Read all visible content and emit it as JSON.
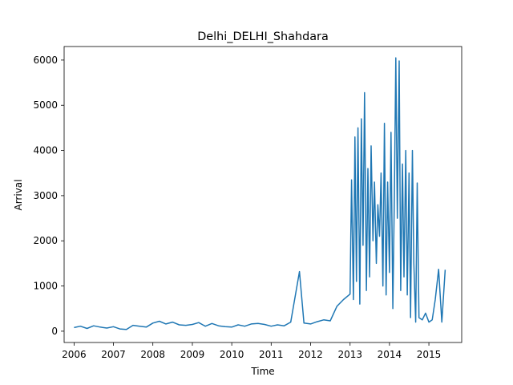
{
  "chart_data": {
    "type": "line",
    "title": "Delhi_DELHI_Shahdara",
    "xlabel": "Time",
    "ylabel": "Arrival",
    "xlim": [
      "2005-10-01",
      "2015-11-01"
    ],
    "ylim": [
      -250,
      6300
    ],
    "x_ticks": [
      "2006",
      "2007",
      "2008",
      "2009",
      "2010",
      "2011",
      "2012",
      "2013",
      "2014",
      "2015"
    ],
    "y_ticks": [
      0,
      1000,
      2000,
      3000,
      4000,
      5000,
      6000
    ],
    "color": "#1f77b4",
    "grid": false,
    "legend": "none",
    "series": [
      {
        "x": [
          "2006-01-01",
          "2006-03-01",
          "2006-05-01",
          "2006-07-01",
          "2006-09-01",
          "2006-11-01",
          "2007-01-01",
          "2007-03-01",
          "2007-05-01",
          "2007-07-01",
          "2007-09-01",
          "2007-11-01",
          "2008-01-01",
          "2008-03-01",
          "2008-05-01",
          "2008-07-01",
          "2008-09-01",
          "2008-11-01",
          "2009-01-01",
          "2009-03-01",
          "2009-05-01",
          "2009-07-01",
          "2009-09-01",
          "2009-11-01",
          "2010-01-01",
          "2010-03-01",
          "2010-05-01",
          "2010-07-01",
          "2010-09-01",
          "2010-11-01",
          "2011-01-01",
          "2011-03-01",
          "2011-05-01",
          "2011-07-01",
          "2011-09-20",
          "2011-11-01",
          "2012-01-01",
          "2012-03-01",
          "2012-05-01",
          "2012-07-01",
          "2012-09-01",
          "2012-11-01",
          "2013-01-01",
          "2013-01-15",
          "2013-02-01",
          "2013-02-15",
          "2013-03-01",
          "2013-03-15",
          "2013-04-01",
          "2013-04-15",
          "2013-05-01",
          "2013-05-15",
          "2013-06-01",
          "2013-06-15",
          "2013-07-01",
          "2013-07-15",
          "2013-08-01",
          "2013-08-15",
          "2013-09-01",
          "2013-09-15",
          "2013-10-01",
          "2013-10-15",
          "2013-11-01",
          "2013-11-15",
          "2013-12-01",
          "2013-12-15",
          "2014-01-01",
          "2014-01-15",
          "2014-02-01",
          "2014-02-15",
          "2014-03-01",
          "2014-03-15",
          "2014-04-01",
          "2014-04-15",
          "2014-05-01",
          "2014-05-15",
          "2014-06-01",
          "2014-06-15",
          "2014-07-01",
          "2014-07-15",
          "2014-08-01",
          "2014-08-15",
          "2014-09-01",
          "2014-09-15",
          "2014-10-01",
          "2014-11-01",
          "2014-12-01",
          "2015-01-01",
          "2015-02-01",
          "2015-03-01",
          "2015-04-01",
          "2015-05-01",
          "2015-06-01"
        ],
        "y": [
          80,
          110,
          60,
          120,
          90,
          70,
          100,
          50,
          40,
          130,
          110,
          90,
          180,
          220,
          160,
          200,
          140,
          130,
          150,
          190,
          110,
          170,
          120,
          100,
          90,
          140,
          110,
          160,
          170,
          150,
          110,
          140,
          120,
          200,
          1320,
          180,
          160,
          210,
          250,
          230,
          550,
          700,
          820,
          3350,
          700,
          4300,
          1100,
          4500,
          600,
          4700,
          1900,
          5280,
          900,
          3600,
          1200,
          4100,
          2000,
          3300,
          1500,
          2800,
          2100,
          3500,
          1000,
          4600,
          800,
          3300,
          1300,
          4400,
          500,
          3000,
          6050,
          2500,
          5980,
          900,
          3700,
          1200,
          4000,
          800,
          3500,
          300,
          4000,
          1500,
          200,
          3280,
          300,
          250,
          400,
          200,
          250,
          700,
          1370,
          200,
          1360
        ]
      }
    ]
  }
}
